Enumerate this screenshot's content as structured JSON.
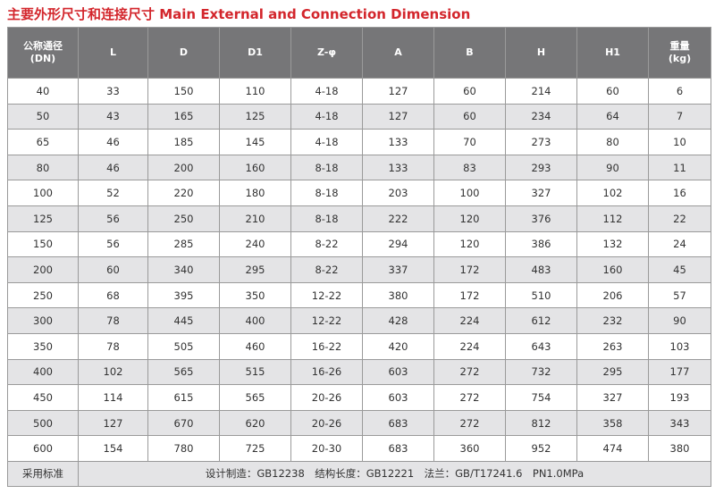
{
  "title": "主要外形尺寸和连接尺寸 Main External and Connection Dimension",
  "table": {
    "header": [
      "公称通径\n(DN)",
      "L",
      "D",
      "D1",
      "Z-φ",
      "A",
      "B",
      "H",
      "H1",
      "重量\n(kg)"
    ],
    "rows": [
      [
        40,
        33,
        150,
        110,
        "4-18",
        127,
        60,
        214,
        60,
        6
      ],
      [
        50,
        43,
        165,
        125,
        "4-18",
        127,
        60,
        234,
        64,
        7
      ],
      [
        65,
        46,
        185,
        145,
        "4-18",
        133,
        70,
        273,
        80,
        10
      ],
      [
        80,
        46,
        200,
        160,
        "8-18",
        133,
        83,
        293,
        90,
        11
      ],
      [
        100,
        52,
        220,
        180,
        "8-18",
        203,
        100,
        327,
        102,
        16
      ],
      [
        125,
        56,
        250,
        210,
        "8-18",
        222,
        120,
        376,
        112,
        22
      ],
      [
        150,
        56,
        285,
        240,
        "8-22",
        294,
        120,
        386,
        132,
        24
      ],
      [
        200,
        60,
        340,
        295,
        "8-22",
        337,
        172,
        483,
        160,
        45
      ],
      [
        250,
        68,
        395,
        350,
        "12-22",
        380,
        172,
        510,
        206,
        57
      ],
      [
        300,
        78,
        445,
        400,
        "12-22",
        428,
        224,
        612,
        232,
        90
      ],
      [
        350,
        78,
        505,
        460,
        "16-22",
        420,
        224,
        643,
        263,
        103
      ],
      [
        400,
        102,
        565,
        515,
        "16-26",
        603,
        272,
        732,
        295,
        177
      ],
      [
        450,
        114,
        615,
        565,
        "20-26",
        603,
        272,
        754,
        327,
        193
      ],
      [
        500,
        127,
        670,
        620,
        "20-26",
        683,
        272,
        812,
        358,
        343
      ],
      [
        600,
        154,
        780,
        725,
        "20-30",
        683,
        360,
        952,
        474,
        380
      ]
    ],
    "footer": {
      "label": "采用标准",
      "text": "设计制造：GB12238　结构长度：GB12221　法兰：GB/T17241.6　PN1.0MPa"
    }
  }
}
